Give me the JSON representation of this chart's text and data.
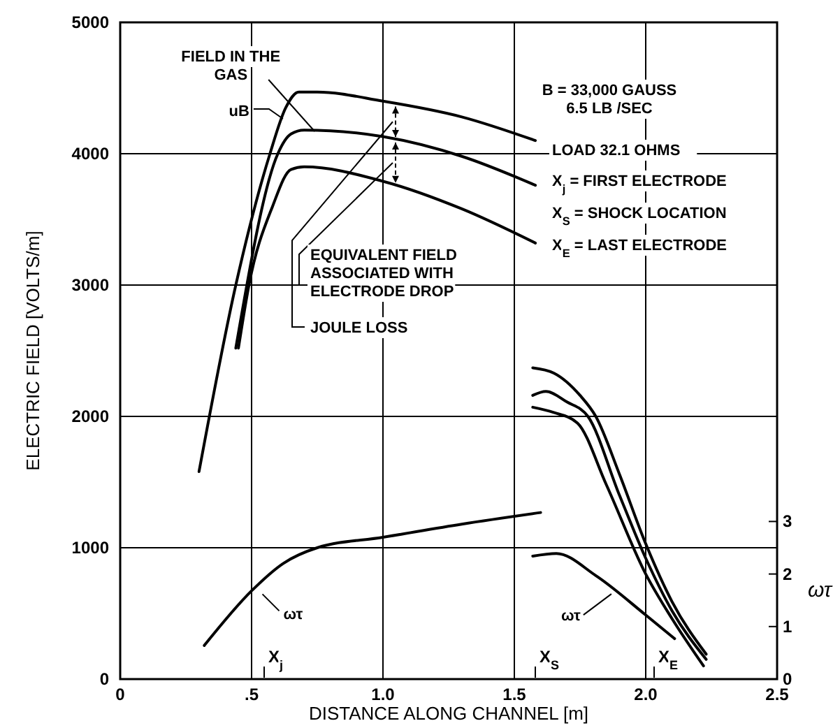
{
  "chart_data": {
    "type": "line",
    "xlabel": "DISTANCE ALONG CHANNEL [m]",
    "ylabel": "ELECTRIC FIELD [VOLTS/m]",
    "y2label": "ωτ",
    "xlim": [
      0,
      2.5
    ],
    "xticks": [
      0,
      {
        "value": 0.5,
        "label": ".5"
      },
      {
        "value": 1,
        "label": "1.0"
      },
      {
        "value": 1.5,
        "label": "1.5"
      },
      {
        "value": 2,
        "label": "2.0"
      },
      {
        "value": 2.5,
        "label": "2.5"
      }
    ],
    "ylim": [
      0,
      5000
    ],
    "yticks": [
      0,
      1000,
      2000,
      3000,
      4000,
      5000
    ],
    "y2lim": [
      0,
      12.5
    ],
    "y2ticks": [
      0,
      1,
      2,
      3
    ],
    "grid": true,
    "marker": "none",
    "line_style": "solid",
    "series": [
      {
        "color": "#000000",
        "x": [
          0.3,
          0.44,
          0.57,
          0.63,
          0.68,
          0.75,
          1.0,
          1.3,
          1.58
        ],
        "values": [
          1580,
          3000,
          4000,
          4350,
          4470,
          4470,
          4400,
          4280,
          4100
        ]
      },
      {
        "color": "#000000",
        "x": [
          0.44,
          0.6,
          0.65,
          0.7,
          1.0,
          1.3,
          1.58
        ],
        "values": [
          2520,
          4000,
          4150,
          4180,
          4130,
          3980,
          3760
        ]
      },
      {
        "color": "#000000",
        "x": [
          0.45,
          0.49,
          0.58,
          0.65,
          0.7,
          1.0,
          1.3,
          1.58
        ],
        "values": [
          2520,
          3000,
          3600,
          3880,
          3900,
          3790,
          3580,
          3320
        ]
      },
      {
        "color": "#000000",
        "x": [
          1.57,
          1.65,
          1.75,
          1.81,
          1.9,
          2.0,
          2.1,
          2.23
        ],
        "values": [
          2370,
          2330,
          2160,
          2000,
          1560,
          1030,
          590,
          190
        ]
      },
      {
        "color": "#000000",
        "x": [
          1.57,
          1.62,
          1.7,
          1.78,
          1.9,
          2.0,
          2.1,
          2.23
        ],
        "values": [
          2160,
          2190,
          2110,
          2000,
          1400,
          920,
          520,
          150
        ]
      },
      {
        "color": "#000000",
        "x": [
          1.57,
          1.65,
          1.74,
          1.85,
          2.0,
          2.1,
          2.22
        ],
        "values": [
          2070,
          2030,
          1950,
          1480,
          800,
          460,
          100
        ]
      },
      {
        "color": "#000000",
        "axis": "y2",
        "x": [
          0.32,
          0.5,
          0.62,
          0.75,
          1.0,
          1.3,
          1.6
        ],
        "values": [
          0.64,
          1.68,
          2.2,
          2.5,
          2.7,
          2.95,
          3.17
        ]
      },
      {
        "color": "#000000",
        "axis": "y2",
        "x": [
          1.57,
          1.66,
          1.81,
          2.0,
          2.11
        ],
        "values": [
          2.34,
          2.39,
          1.97,
          1.22,
          0.77
        ]
      }
    ],
    "annotations": [
      {
        "text": "FIELD IN THE\nGAS",
        "x": 0.74,
        "y": 4170
      },
      {
        "text": "uB",
        "x": 0.63,
        "y": 4330
      },
      "EQUIVALENT FIELD\nASSOCIATED WITH\nELECTRODE DROP",
      "JOULE LOSS",
      "B = 33,000 GAUSS\n6.5 LB /SEC",
      "LOAD 32.1 OHMS",
      "X$_{j}$ = FIRST ELECTRODE",
      "X$_{S}$ = SHOCK LOCATION",
      "X$_{E}$ = LAST ELECTRODE",
      {
        "text": "ωτ",
        "x": 0.52,
        "y": 700
      },
      {
        "text": "ωτ",
        "x": 1.88,
        "y": 680
      },
      "X$_{j}$",
      "X$_{S}$",
      "X$_{E}$"
    ]
  }
}
